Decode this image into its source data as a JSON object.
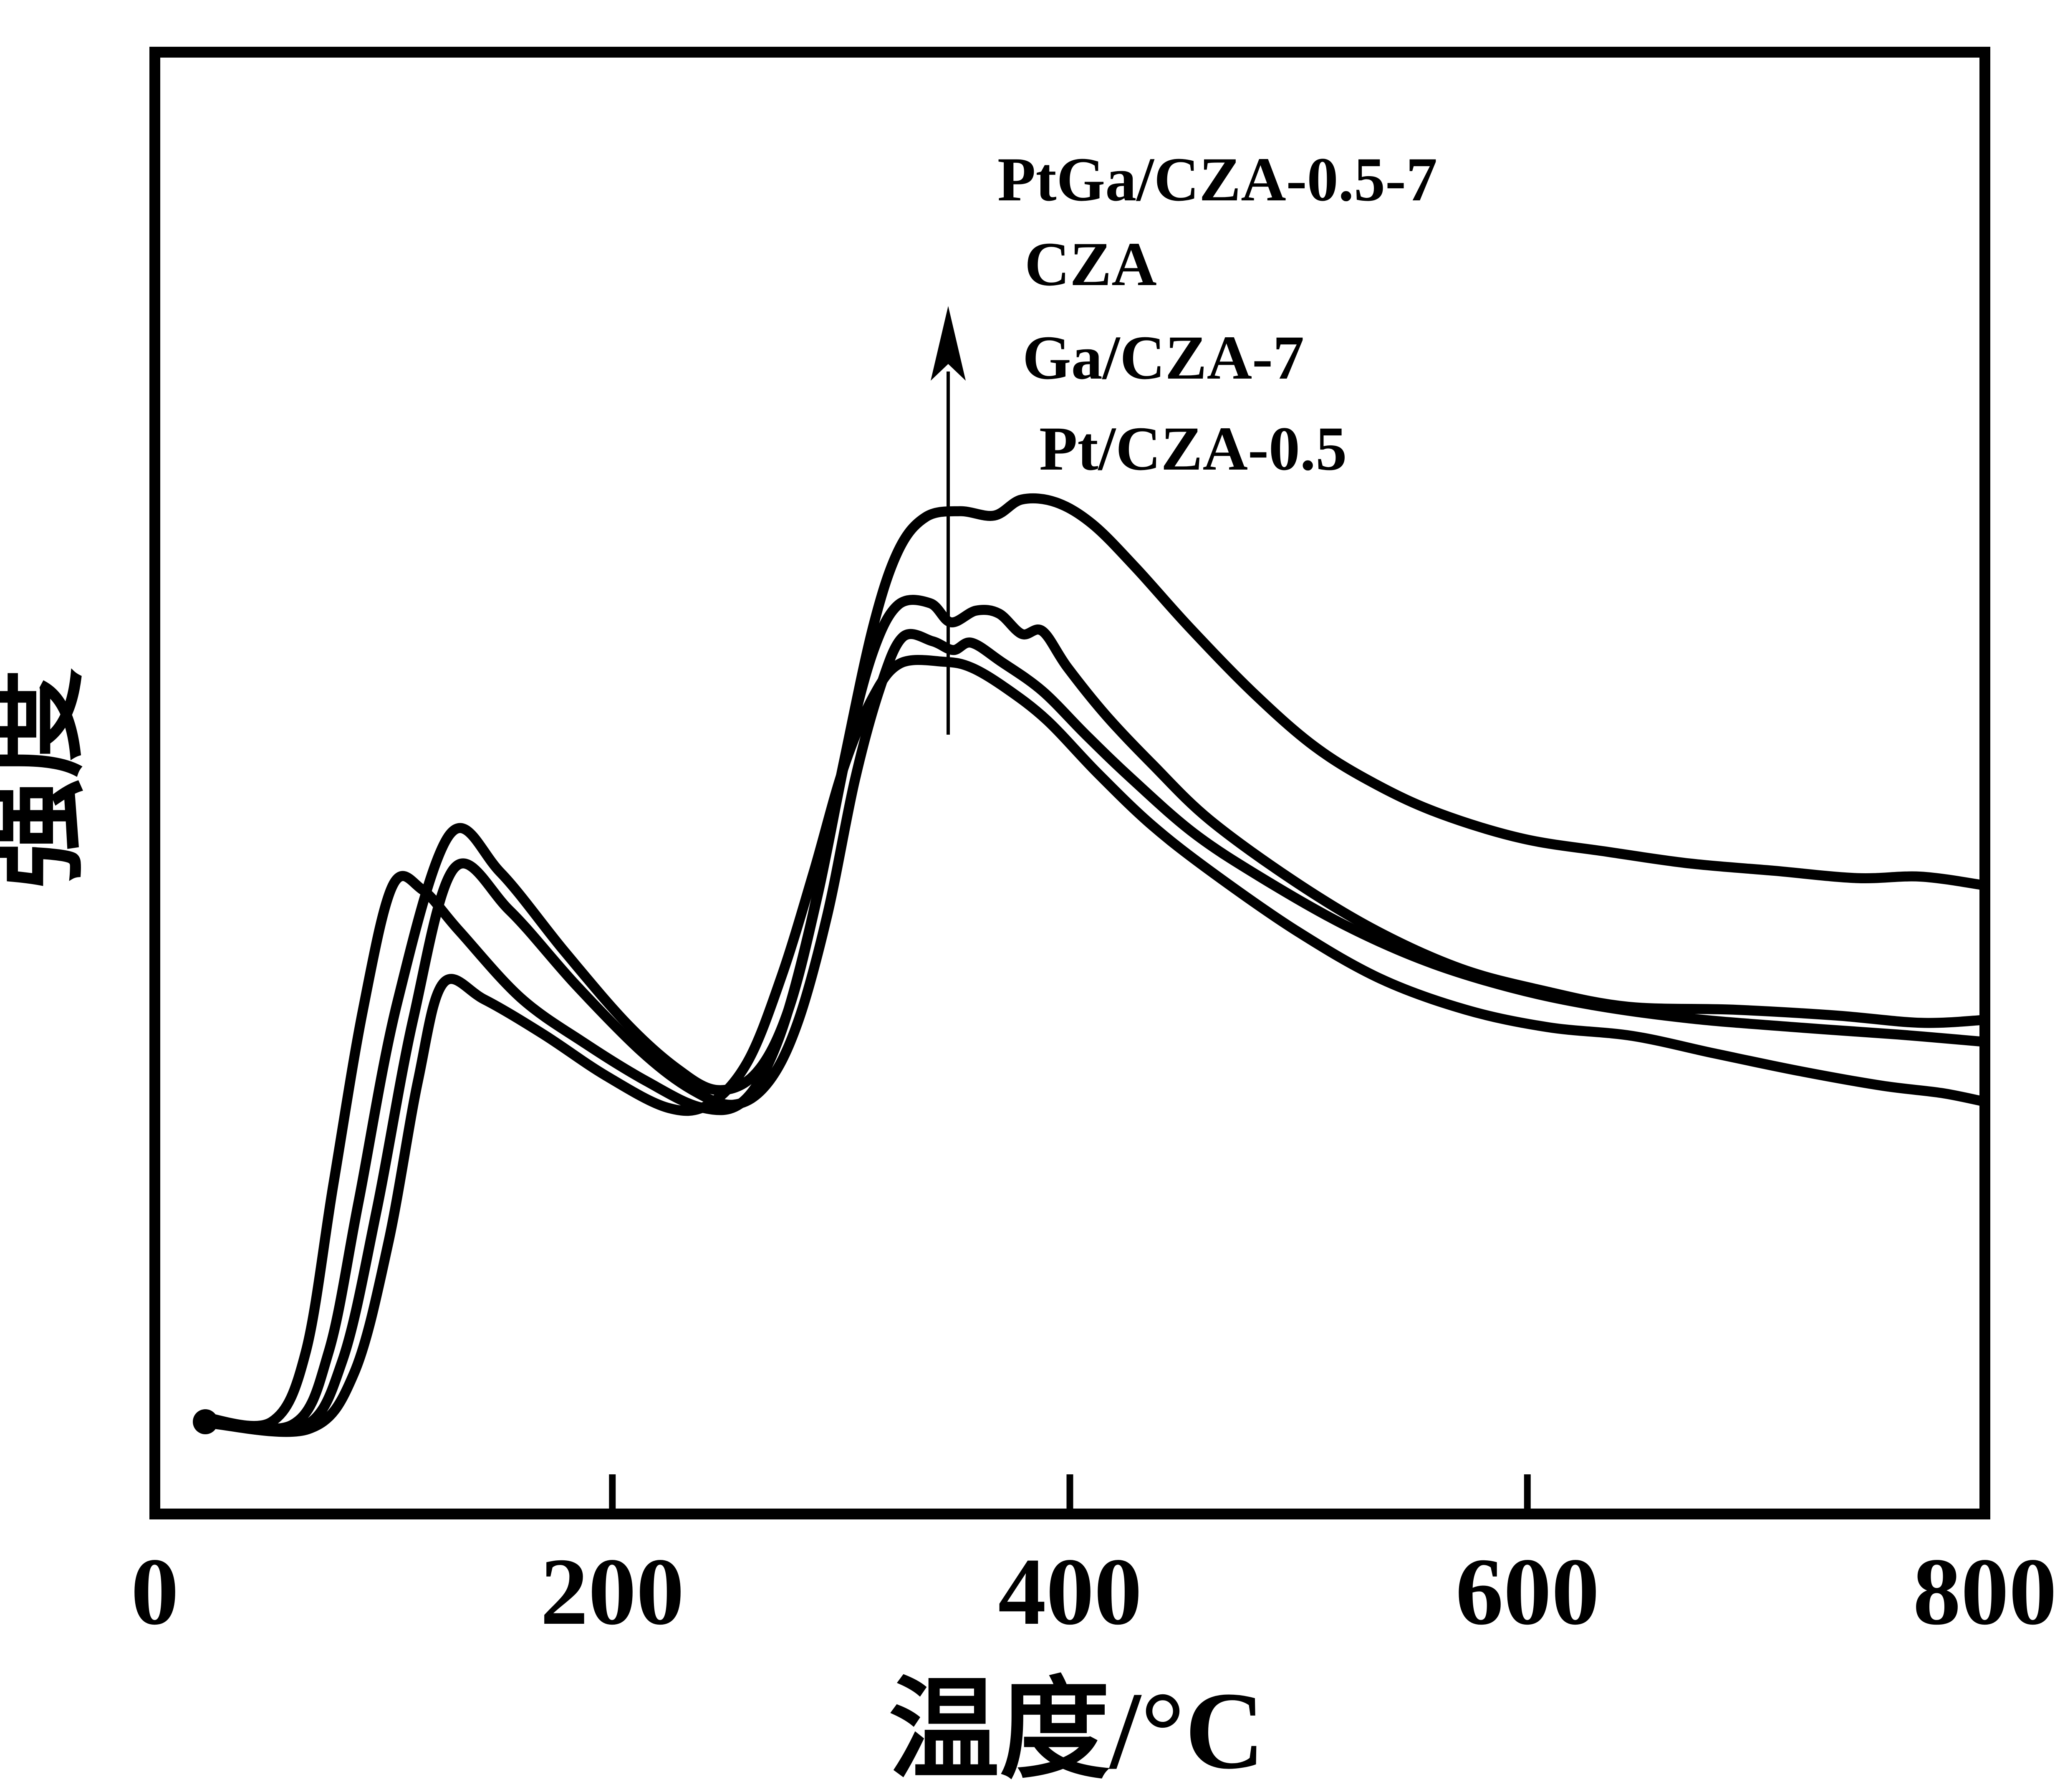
{
  "page": {
    "background_color": "#ffffff",
    "foreground_color": "#000000",
    "description": "H2-TPR style profile chart: intensity vs temperature for four catalysts, four overlapping black curves"
  },
  "chart_data": {
    "type": "line",
    "title": "",
    "xlabel": "温度/°C",
    "ylabel": "强度",
    "x_range": [
      0,
      800
    ],
    "y_range": [
      0,
      1
    ],
    "grid": false,
    "x_ticks": [
      0,
      200,
      400,
      600,
      800
    ],
    "x_tick_labels": [
      "0",
      "200",
      "400",
      "600",
      "800"
    ],
    "inner_ticks": [
      200,
      400,
      600
    ],
    "line_color": "#000000",
    "legend": {
      "position": "top-center",
      "entries": [
        {
          "label": "PtGa/CZA-0.5-7"
        },
        {
          "label": "CZA"
        },
        {
          "label": "Ga/CZA-7"
        },
        {
          "label": "Pt/CZA-0.5"
        }
      ],
      "arrow": {
        "direction": "up",
        "x_temp": 347,
        "base_intensity": 0.533,
        "tip_intensity": 0.826
      }
    },
    "series": [
      {
        "name": "PtGa/CZA-0.5-7",
        "points": [
          [
            22,
            0.066
          ],
          [
            51,
            0.063
          ],
          [
            66,
            0.111
          ],
          [
            78,
            0.225
          ],
          [
            91,
            0.345
          ],
          [
            104,
            0.43
          ],
          [
            117,
            0.427
          ],
          [
            133,
            0.399
          ],
          [
            160,
            0.353
          ],
          [
            188,
            0.322
          ],
          [
            215,
            0.296
          ],
          [
            239,
            0.278
          ],
          [
            257,
            0.282
          ],
          [
            272,
            0.322
          ],
          [
            286,
            0.399
          ],
          [
            301,
            0.513
          ],
          [
            314,
            0.607
          ],
          [
            325,
            0.659
          ],
          [
            337,
            0.682
          ],
          [
            352,
            0.686
          ],
          [
            367,
            0.683
          ],
          [
            379,
            0.694
          ],
          [
            394,
            0.692
          ],
          [
            410,
            0.677
          ],
          [
            429,
            0.647
          ],
          [
            452,
            0.607
          ],
          [
            480,
            0.562
          ],
          [
            507,
            0.525
          ],
          [
            534,
            0.499
          ],
          [
            562,
            0.479
          ],
          [
            598,
            0.462
          ],
          [
            635,
            0.453
          ],
          [
            671,
            0.445
          ],
          [
            708,
            0.44
          ],
          [
            744,
            0.435
          ],
          [
            772,
            0.436
          ],
          [
            800,
            0.43
          ]
        ]
      },
      {
        "name": "CZA",
        "points": [
          [
            22,
            0.065
          ],
          [
            60,
            0.061
          ],
          [
            76,
            0.111
          ],
          [
            89,
            0.213
          ],
          [
            106,
            0.35
          ],
          [
            129,
            0.465
          ],
          [
            151,
            0.439
          ],
          [
            179,
            0.385
          ],
          [
            206,
            0.336
          ],
          [
            228,
            0.305
          ],
          [
            246,
            0.29
          ],
          [
            263,
            0.302
          ],
          [
            277,
            0.345
          ],
          [
            290,
            0.425
          ],
          [
            303,
            0.525
          ],
          [
            314,
            0.59
          ],
          [
            325,
            0.622
          ],
          [
            339,
            0.623
          ],
          [
            348,
            0.61
          ],
          [
            359,
            0.618
          ],
          [
            369,
            0.616
          ],
          [
            379,
            0.602
          ],
          [
            388,
            0.604
          ],
          [
            399,
            0.579
          ],
          [
            416,
            0.546
          ],
          [
            436,
            0.513
          ],
          [
            461,
            0.475
          ],
          [
            498,
            0.433
          ],
          [
            534,
            0.399
          ],
          [
            571,
            0.373
          ],
          [
            607,
            0.358
          ],
          [
            644,
            0.347
          ],
          [
            690,
            0.345
          ],
          [
            735,
            0.341
          ],
          [
            772,
            0.336
          ],
          [
            800,
            0.338
          ]
        ]
      },
      {
        "name": "Ga/CZA-7",
        "points": [
          [
            22,
            0.063
          ],
          [
            64,
            0.059
          ],
          [
            82,
            0.105
          ],
          [
            97,
            0.208
          ],
          [
            113,
            0.339
          ],
          [
            131,
            0.442
          ],
          [
            155,
            0.413
          ],
          [
            184,
            0.362
          ],
          [
            213,
            0.316
          ],
          [
            235,
            0.29
          ],
          [
            253,
            0.28
          ],
          [
            268,
            0.295
          ],
          [
            281,
            0.336
          ],
          [
            294,
            0.41
          ],
          [
            306,
            0.502
          ],
          [
            317,
            0.565
          ],
          [
            327,
            0.6
          ],
          [
            340,
            0.597
          ],
          [
            349,
            0.591
          ],
          [
            357,
            0.596
          ],
          [
            370,
            0.583
          ],
          [
            388,
            0.563
          ],
          [
            407,
            0.533
          ],
          [
            427,
            0.503
          ],
          [
            454,
            0.466
          ],
          [
            483,
            0.436
          ],
          [
            520,
            0.403
          ],
          [
            556,
            0.378
          ],
          [
            593,
            0.36
          ],
          [
            629,
            0.348
          ],
          [
            671,
            0.339
          ],
          [
            717,
            0.333
          ],
          [
            762,
            0.328
          ],
          [
            800,
            0.323
          ]
        ]
      },
      {
        "name": "Pt/CZA-0.5",
        "points": [
          [
            24,
            0.062
          ],
          [
            67,
            0.058
          ],
          [
            87,
            0.096
          ],
          [
            102,
            0.185
          ],
          [
            115,
            0.296
          ],
          [
            126,
            0.363
          ],
          [
            144,
            0.352
          ],
          [
            170,
            0.328
          ],
          [
            197,
            0.3
          ],
          [
            224,
            0.278
          ],
          [
            242,
            0.28
          ],
          [
            259,
            0.309
          ],
          [
            274,
            0.368
          ],
          [
            288,
            0.439
          ],
          [
            301,
            0.51
          ],
          [
            314,
            0.559
          ],
          [
            326,
            0.582
          ],
          [
            345,
            0.583
          ],
          [
            357,
            0.579
          ],
          [
            372,
            0.565
          ],
          [
            390,
            0.543
          ],
          [
            412,
            0.507
          ],
          [
            436,
            0.471
          ],
          [
            463,
            0.438
          ],
          [
            500,
            0.398
          ],
          [
            536,
            0.366
          ],
          [
            573,
            0.345
          ],
          [
            609,
            0.333
          ],
          [
            646,
            0.327
          ],
          [
            682,
            0.315
          ],
          [
            719,
            0.303
          ],
          [
            755,
            0.293
          ],
          [
            781,
            0.288
          ],
          [
            800,
            0.282
          ]
        ]
      }
    ]
  }
}
